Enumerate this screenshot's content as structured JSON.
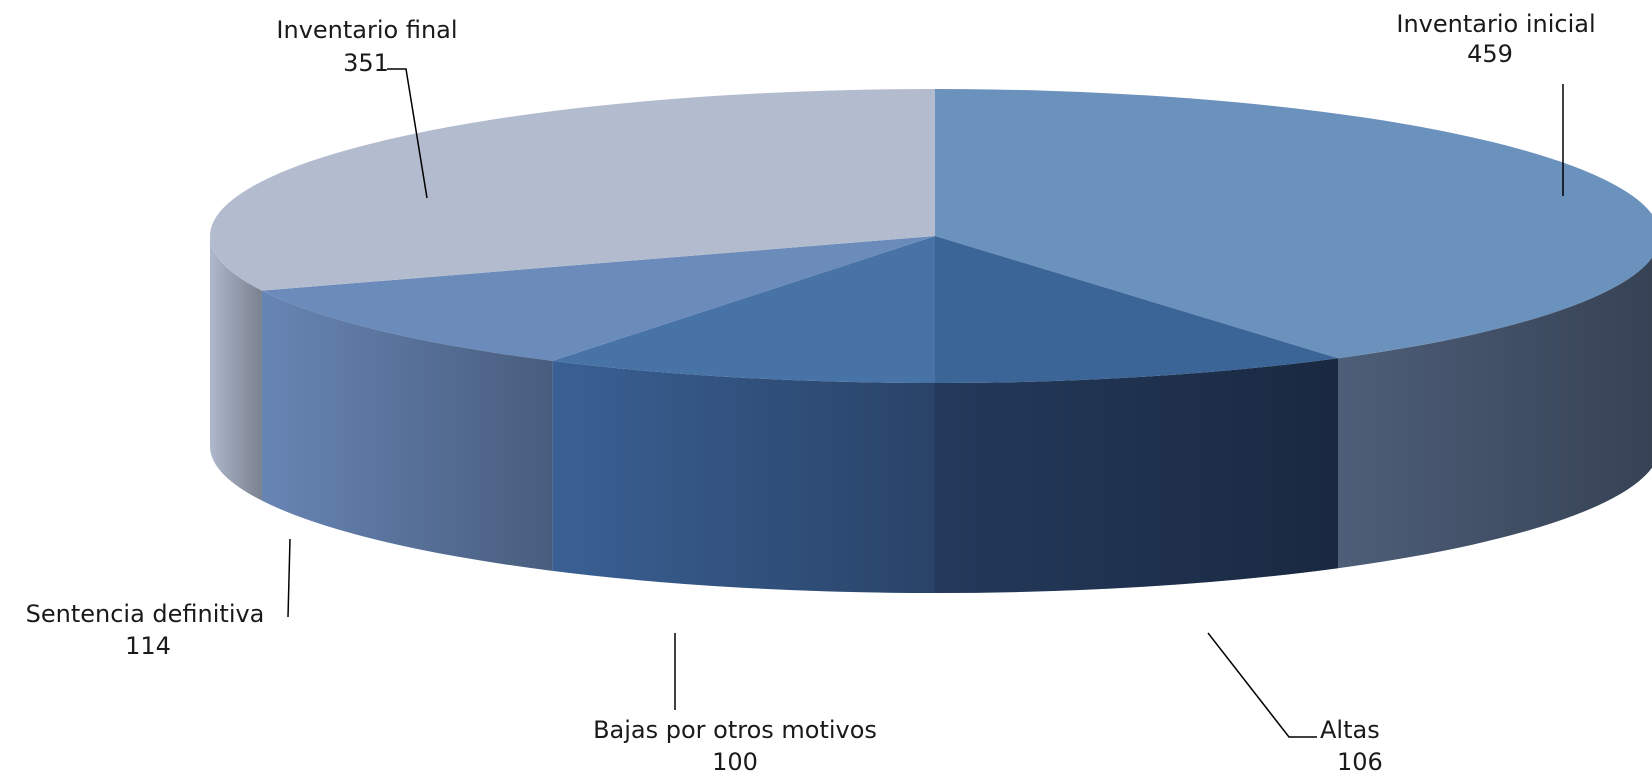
{
  "chart_data": {
    "type": "pie",
    "title": "",
    "slices": [
      {
        "label": "Inventario inicial",
        "value": 459,
        "top_color": "#6b91bd",
        "side_color": "#4d5e78"
      },
      {
        "label": "Altas",
        "value": 106,
        "top_color": "#3c6597",
        "side_color": "#243a5c"
      },
      {
        "label": "Bajas por otros motivos",
        "value": 100,
        "top_color": "#4773a7",
        "side_color": "#3a6094"
      },
      {
        "label": "Sentencia definitiva",
        "value": 114,
        "top_color": "#6b8cbb",
        "side_color": "#6785b4"
      },
      {
        "label": "Inventario final",
        "value": 351,
        "top_color": "#b3bccf",
        "side_color": "#aeb8cc"
      }
    ],
    "legend": "none",
    "style": "3d-exploded-off"
  }
}
